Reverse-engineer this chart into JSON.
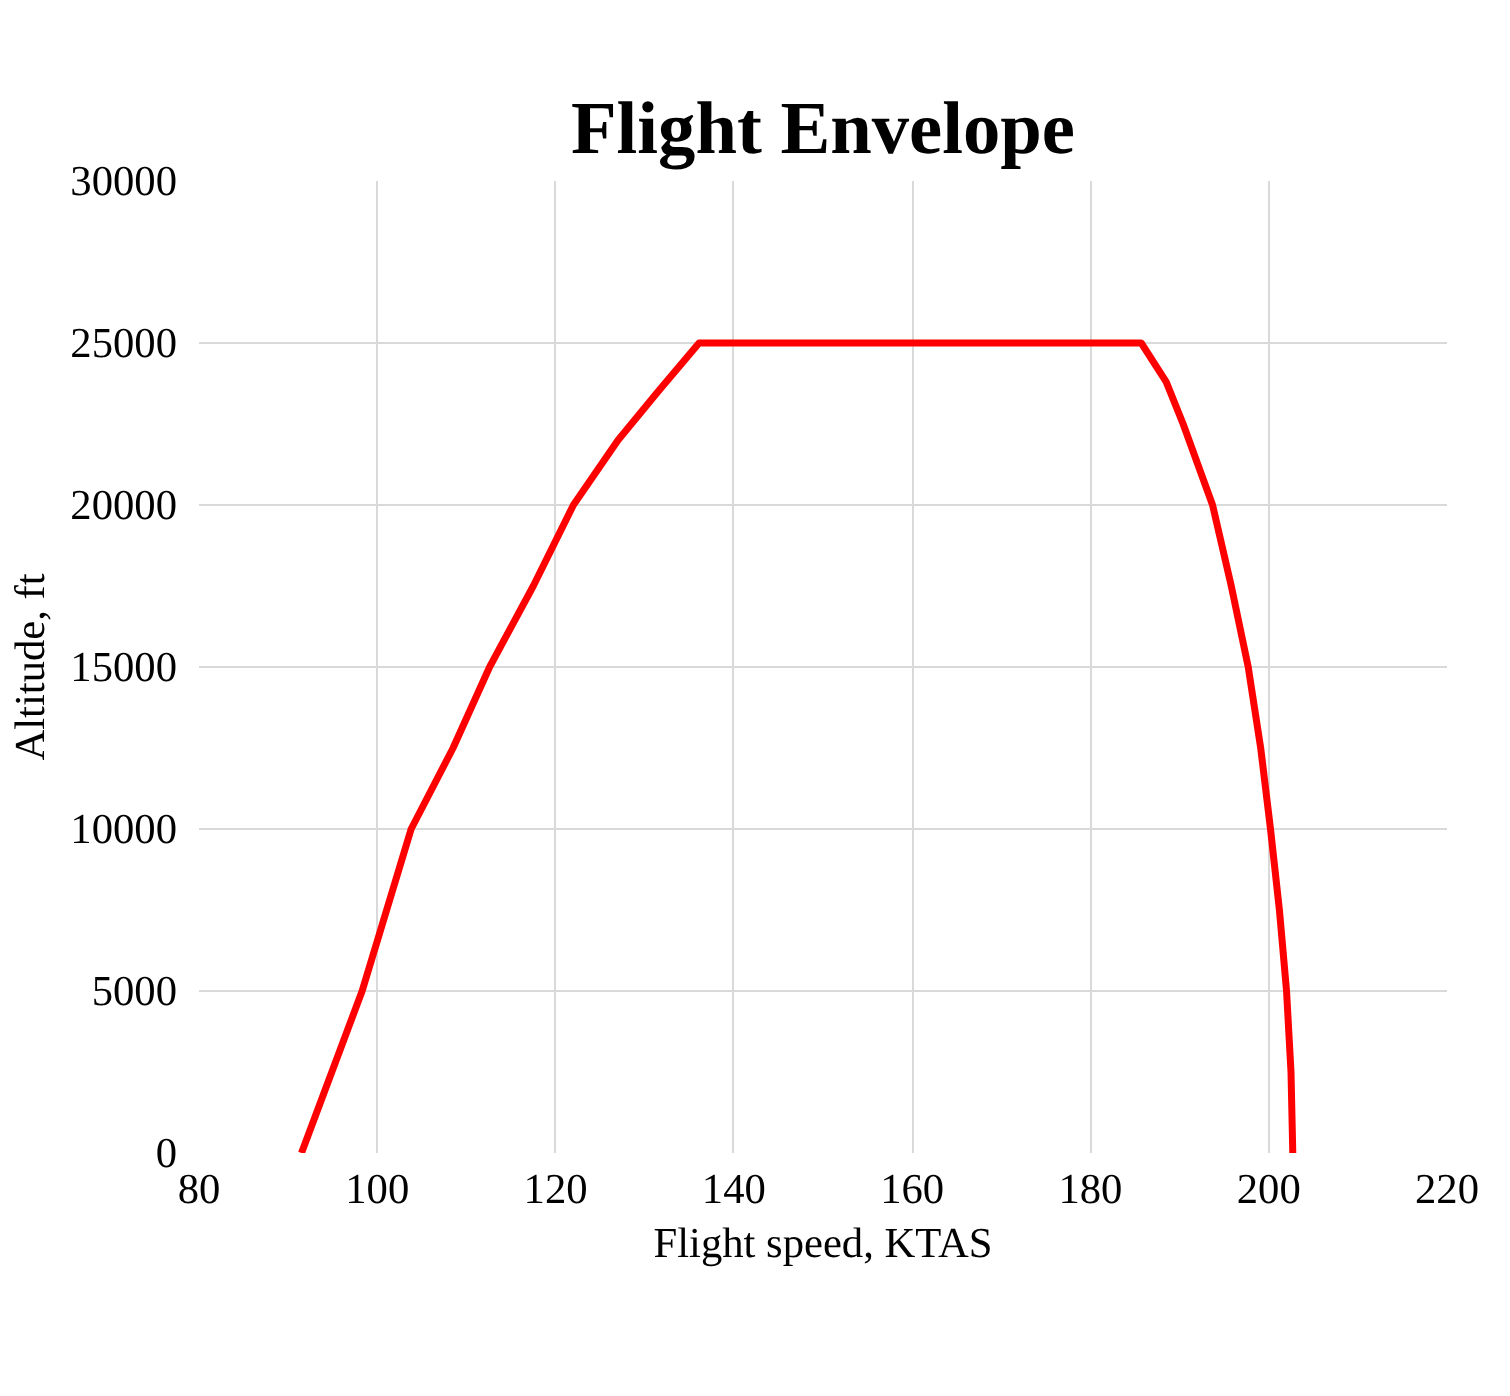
{
  "chart_data": {
    "type": "line",
    "title": "Flight Envelope",
    "xlabel": "Flight speed, KTAS",
    "ylabel": "Altitude, ft",
    "series": [
      {
        "color": "#ff0000",
        "x": [
          91.5,
          98.3,
          103.8,
          108.5,
          112.6,
          117.5,
          122,
          127,
          131.5,
          136.1,
          185.7,
          188.5,
          190.4,
          193.7,
          195.8,
          197.7,
          199.1,
          200.2,
          201.2,
          202,
          202.5,
          202.7
        ],
        "values": [
          0,
          5000,
          10000,
          12500,
          15000,
          17500,
          20000,
          22000,
          23500,
          25000,
          25000,
          23800,
          22500,
          20000,
          17500,
          15000,
          12500,
          10000,
          7500,
          5000,
          2500,
          0
        ]
      }
    ],
    "xlim": [
      80,
      220
    ],
    "ylim": [
      0,
      30000
    ],
    "xticks": [
      80,
      100,
      120,
      140,
      160,
      180,
      200,
      220
    ],
    "yticks": [
      0,
      5000,
      10000,
      15000,
      20000,
      25000,
      30000
    ],
    "grid": true,
    "marker": "none",
    "line_style": "solid"
  }
}
